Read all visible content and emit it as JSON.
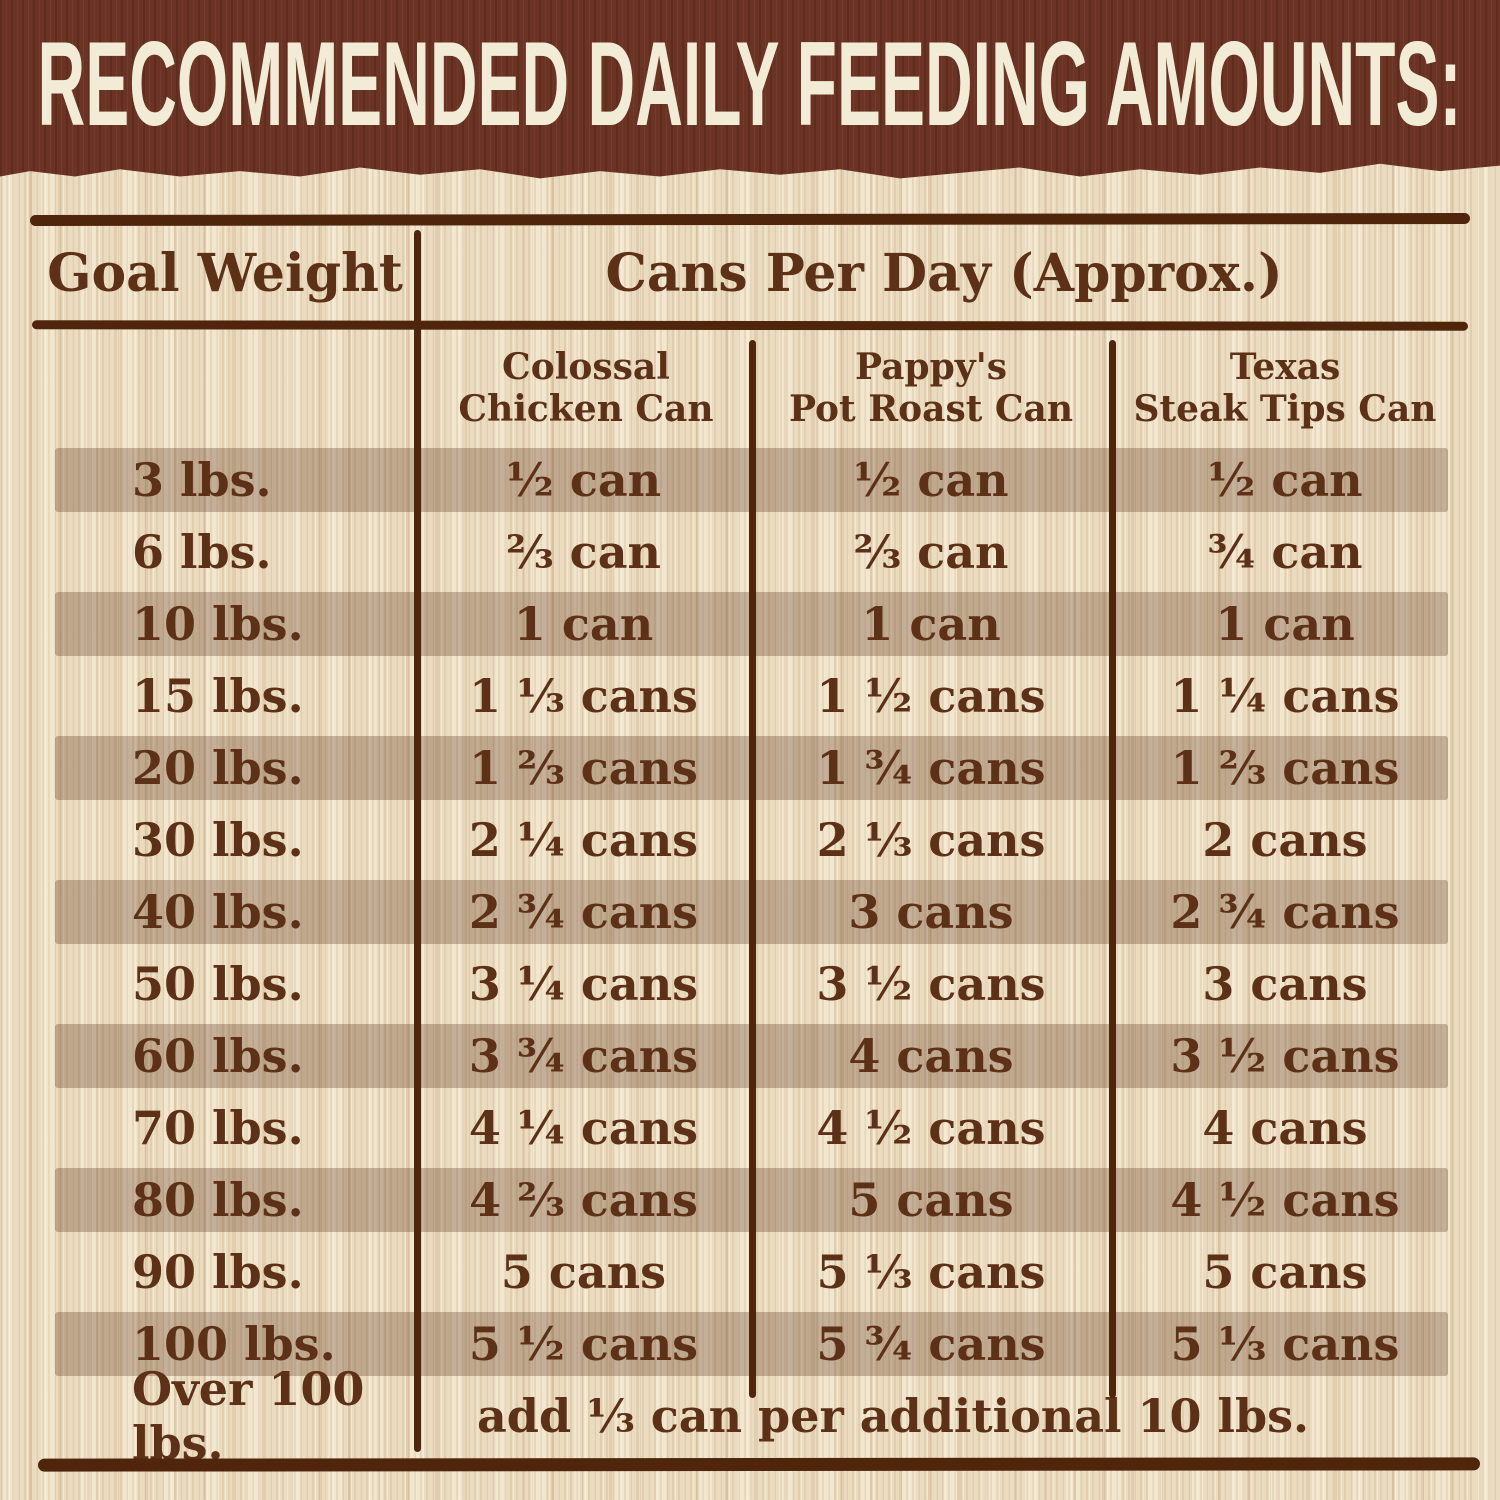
{
  "banner": {
    "title": "RECOMMENDED DAILY FEEDING AMOUNTS:"
  },
  "table": {
    "header": {
      "goal_weight": "Goal Weight",
      "cans_per_day": "Cans Per Day (Approx.)"
    },
    "columns": [
      {
        "line1": "Colossal",
        "line2": "Chicken Can"
      },
      {
        "line1": "Pappy's",
        "line2": "Pot Roast Can"
      },
      {
        "line1": "Texas",
        "line2": "Steak Tips Can"
      }
    ],
    "rows": [
      {
        "weight": "3 lbs.",
        "colossal": "½ can",
        "pappys": "½ can",
        "texas": "½ can",
        "shaded": true
      },
      {
        "weight": "6 lbs.",
        "colossal": "⅔ can",
        "pappys": "⅔ can",
        "texas": "¾ can",
        "shaded": false
      },
      {
        "weight": "10 lbs.",
        "colossal": "1 can",
        "pappys": "1 can",
        "texas": "1 can",
        "shaded": true
      },
      {
        "weight": "15 lbs.",
        "colossal": "1 ⅓ cans",
        "pappys": "1 ½ cans",
        "texas": "1 ¼ cans",
        "shaded": false
      },
      {
        "weight": "20 lbs.",
        "colossal": "1 ⅔ cans",
        "pappys": "1 ¾ cans",
        "texas": "1 ⅔ cans",
        "shaded": true
      },
      {
        "weight": "30 lbs.",
        "colossal": "2 ¼ cans",
        "pappys": "2 ⅓ cans",
        "texas": "2 cans",
        "shaded": false
      },
      {
        "weight": "40 lbs.",
        "colossal": "2 ¾ cans",
        "pappys": "3 cans",
        "texas": "2 ¾ cans",
        "shaded": true
      },
      {
        "weight": "50 lbs.",
        "colossal": "3 ¼ cans",
        "pappys": "3 ½ cans",
        "texas": "3 cans",
        "shaded": false
      },
      {
        "weight": "60 lbs.",
        "colossal": "3 ¾ cans",
        "pappys": "4 cans",
        "texas": "3 ½ cans",
        "shaded": true
      },
      {
        "weight": "70 lbs.",
        "colossal": "4 ¼ cans",
        "pappys": "4 ½ cans",
        "texas": "4 cans",
        "shaded": false
      },
      {
        "weight": "80 lbs.",
        "colossal": "4 ⅔ cans",
        "pappys": "5 cans",
        "texas": "4 ½ cans",
        "shaded": true
      },
      {
        "weight": "90 lbs.",
        "colossal": "5 cans",
        "pappys": "5 ⅓ cans",
        "texas": "5 cans",
        "shaded": false
      },
      {
        "weight": "100 lbs.",
        "colossal": "5 ½ cans",
        "pappys": "5 ¾ cans",
        "texas": "5 ⅓ cans",
        "shaded": true
      }
    ],
    "footer": {
      "weight": "Over 100 lbs.",
      "note": "add ⅓ can per additional 10 lbs."
    }
  },
  "colors": {
    "banner": "#6b3323",
    "banner_text": "#f2ecd6",
    "table_text": "#5c3117",
    "line": "#4f250c",
    "row_band": "#bfa68d",
    "background": "#efe0c5"
  },
  "chart_data": {
    "type": "table",
    "title": "RECOMMENDED DAILY FEEDING AMOUNTS:",
    "group_header": "Cans Per Day (Approx.)",
    "columns": [
      "Goal Weight",
      "Colossal Chicken Can",
      "Pappy's Pot Roast Can",
      "Texas Steak Tips Can"
    ],
    "rows": [
      [
        "3 lbs.",
        "½ can",
        "½ can",
        "½ can"
      ],
      [
        "6 lbs.",
        "⅔ can",
        "⅔ can",
        "¾ can"
      ],
      [
        "10 lbs.",
        "1 can",
        "1 can",
        "1 can"
      ],
      [
        "15 lbs.",
        "1 ⅓ cans",
        "1 ½ cans",
        "1 ¼ cans"
      ],
      [
        "20 lbs.",
        "1 ⅔ cans",
        "1 ¾ cans",
        "1 ⅔ cans"
      ],
      [
        "30 lbs.",
        "2 ¼ cans",
        "2 ⅓ cans",
        "2 cans"
      ],
      [
        "40 lbs.",
        "2 ¾ cans",
        "3 cans",
        "2 ¾ cans"
      ],
      [
        "50 lbs.",
        "3 ¼ cans",
        "3 ½ cans",
        "3 cans"
      ],
      [
        "60 lbs.",
        "3 ¾ cans",
        "4 cans",
        "3 ½ cans"
      ],
      [
        "70 lbs.",
        "4 ¼ cans",
        "4 ½ cans",
        "4 cans"
      ],
      [
        "80 lbs.",
        "4 ⅔ cans",
        "5 cans",
        "4 ½ cans"
      ],
      [
        "90 lbs.",
        "5 cans",
        "5 ⅓ cans",
        "5 cans"
      ],
      [
        "100 lbs.",
        "5 ½ cans",
        "5 ¾ cans",
        "5 ⅓ cans"
      ],
      [
        "Over 100 lbs.",
        "add ⅓ can per additional 10 lbs.",
        "",
        ""
      ]
    ]
  }
}
